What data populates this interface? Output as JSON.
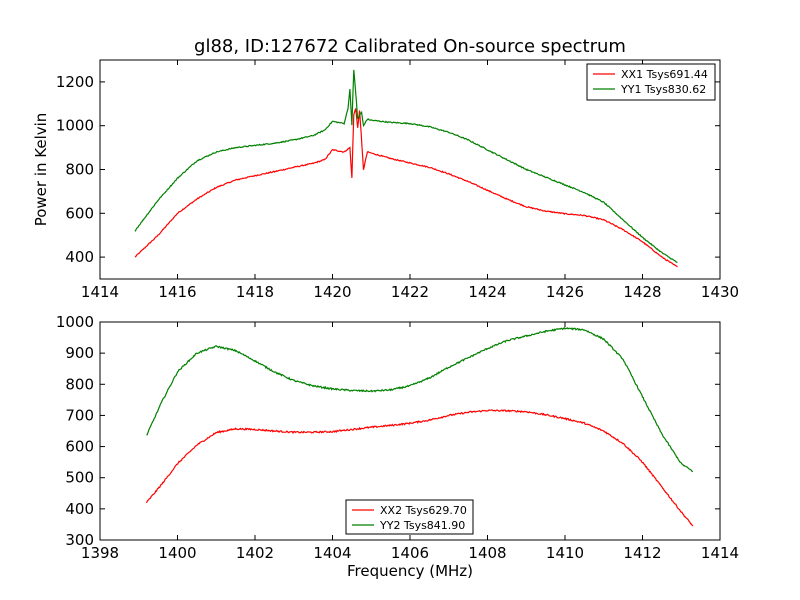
{
  "chart_data": [
    {
      "type": "line",
      "title": "gl88, ID:127672 Calibrated On-source spectrum",
      "xlabel": "",
      "ylabel": "Power in Kelvin",
      "xlim": [
        1414,
        1430
      ],
      "ylim": [
        300,
        1300
      ],
      "x_ticks": [
        1414,
        1416,
        1418,
        1420,
        1422,
        1424,
        1426,
        1428,
        1430
      ],
      "y_ticks": [
        400,
        600,
        800,
        1000,
        1200
      ],
      "legend_position": "top-right",
      "series": [
        {
          "name": "XX1 Tsys691.44",
          "color": "#ff0000",
          "x": [
            1414.9,
            1415.5,
            1416.0,
            1416.5,
            1417.0,
            1417.5,
            1418.0,
            1418.5,
            1419.0,
            1419.5,
            1419.8,
            1420.0,
            1420.3,
            1420.45,
            1420.5,
            1420.55,
            1420.6,
            1420.65,
            1420.7,
            1420.8,
            1420.9,
            1421.0,
            1421.5,
            1422.0,
            1422.5,
            1423.0,
            1423.5,
            1424.0,
            1424.5,
            1425.0,
            1425.5,
            1426.0,
            1426.5,
            1427.0,
            1427.5,
            1428.0,
            1428.5,
            1428.9
          ],
          "values": [
            400,
            500,
            600,
            665,
            718,
            752,
            772,
            790,
            810,
            828,
            845,
            890,
            880,
            900,
            760,
            1050,
            1080,
            990,
            1070,
            800,
            880,
            875,
            850,
            830,
            810,
            780,
            745,
            705,
            665,
            630,
            610,
            598,
            590,
            570,
            525,
            470,
            400,
            355
          ]
        },
        {
          "name": "YY1 Tsys830.62",
          "color": "#008000",
          "x": [
            1414.9,
            1415.5,
            1416.0,
            1416.5,
            1417.0,
            1417.5,
            1418.0,
            1418.5,
            1419.0,
            1419.5,
            1419.8,
            1420.0,
            1420.3,
            1420.4,
            1420.45,
            1420.5,
            1420.55,
            1420.6,
            1420.65,
            1420.7,
            1420.75,
            1420.8,
            1420.9,
            1421.0,
            1421.5,
            1422.0,
            1422.5,
            1423.0,
            1423.5,
            1424.0,
            1424.5,
            1425.0,
            1425.5,
            1426.0,
            1426.5,
            1427.0,
            1427.5,
            1428.0,
            1428.5,
            1428.9
          ],
          "values": [
            520,
            660,
            760,
            840,
            880,
            900,
            910,
            920,
            935,
            955,
            980,
            1020,
            1010,
            1080,
            1170,
            1000,
            1255,
            1150,
            1030,
            1050,
            1060,
            1000,
            1030,
            1025,
            1015,
            1010,
            995,
            970,
            935,
            890,
            845,
            800,
            765,
            730,
            695,
            650,
            570,
            490,
            420,
            375
          ]
        }
      ]
    },
    {
      "type": "line",
      "title": "",
      "xlabel": "Frequency (MHz)",
      "ylabel": "",
      "xlim": [
        1398,
        1414
      ],
      "ylim": [
        300,
        1000
      ],
      "x_ticks": [
        1398,
        1400,
        1402,
        1404,
        1406,
        1408,
        1410,
        1412,
        1414
      ],
      "y_ticks": [
        300,
        400,
        500,
        600,
        700,
        800,
        900,
        1000
      ],
      "legend_position": "bottom-center",
      "series": [
        {
          "name": "XX2 Tsys629.70",
          "color": "#ff0000",
          "x": [
            1399.2,
            1399.6,
            1400.0,
            1400.5,
            1401.0,
            1401.5,
            1402.0,
            1402.5,
            1403.0,
            1403.5,
            1404.0,
            1404.5,
            1405.0,
            1405.5,
            1406.0,
            1406.5,
            1407.0,
            1407.5,
            1408.0,
            1408.5,
            1409.0,
            1409.5,
            1410.0,
            1410.5,
            1411.0,
            1411.5,
            1412.0,
            1412.5,
            1413.0,
            1413.3
          ],
          "values": [
            420,
            480,
            545,
            605,
            645,
            657,
            655,
            650,
            646,
            646,
            648,
            655,
            662,
            668,
            675,
            685,
            700,
            710,
            716,
            715,
            712,
            702,
            690,
            675,
            650,
            610,
            550,
            470,
            390,
            345
          ]
        },
        {
          "name": "YY2 Tsys841.90",
          "color": "#008000",
          "x": [
            1399.2,
            1399.6,
            1400.0,
            1400.5,
            1401.0,
            1401.5,
            1402.0,
            1402.5,
            1403.0,
            1403.5,
            1404.0,
            1404.5,
            1405.0,
            1405.5,
            1406.0,
            1406.5,
            1407.0,
            1407.5,
            1408.0,
            1408.5,
            1409.0,
            1409.5,
            1410.0,
            1410.5,
            1411.0,
            1411.5,
            1412.0,
            1412.5,
            1413.0,
            1413.3
          ],
          "values": [
            635,
            745,
            840,
            900,
            922,
            908,
            875,
            840,
            812,
            795,
            785,
            780,
            778,
            782,
            795,
            820,
            855,
            885,
            915,
            940,
            955,
            970,
            980,
            975,
            945,
            880,
            760,
            640,
            545,
            520
          ]
        }
      ]
    }
  ]
}
